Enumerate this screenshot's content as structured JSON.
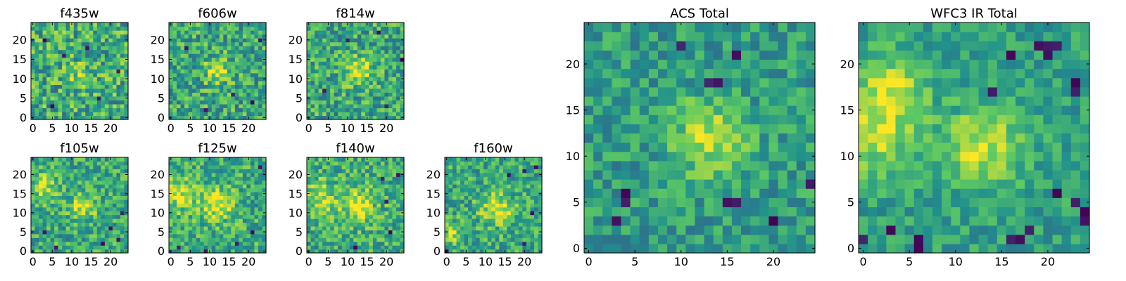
{
  "figure": {
    "colormap": "viridis",
    "colormap_stops": [
      "#440154",
      "#3b528b",
      "#21918c",
      "#5ec962",
      "#fde725"
    ]
  },
  "chart_data": [
    {
      "type": "heatmap",
      "title": "f435w",
      "shape": [
        25,
        25
      ],
      "xticks": [
        "0",
        "5",
        "10",
        "15",
        "20"
      ],
      "yticks": [
        "0",
        "5",
        "10",
        "15",
        "20"
      ],
      "xlim": [
        -0.5,
        24.5
      ],
      "ylim": [
        -0.5,
        24.5
      ],
      "origin": "lower",
      "seed": 11,
      "noise": 0.55,
      "blobs": [
        [
          12,
          11,
          2.5,
          0.15
        ]
      ],
      "base": 0.62,
      "darks": [
        [
          8,
          16
        ],
        [
          17,
          5
        ],
        [
          3,
          20
        ],
        [
          22,
          12
        ],
        [
          14,
          18
        ],
        [
          5,
          3
        ]
      ]
    },
    {
      "type": "heatmap",
      "title": "f606w",
      "shape": [
        25,
        25
      ],
      "xticks": [
        "0",
        "5",
        "10",
        "15",
        "20"
      ],
      "yticks": [
        "0",
        "5",
        "10",
        "15",
        "20"
      ],
      "xlim": [
        -0.5,
        24.5
      ],
      "ylim": [
        -0.5,
        24.5
      ],
      "origin": "lower",
      "seed": 23,
      "noise": 0.5,
      "blobs": [
        [
          12,
          12,
          2.2,
          0.35
        ]
      ],
      "base": 0.6,
      "darks": [
        [
          21,
          4
        ],
        [
          4,
          18
        ],
        [
          16,
          6
        ],
        [
          9,
          2
        ],
        [
          23,
          20
        ]
      ]
    },
    {
      "type": "heatmap",
      "title": "f814w",
      "shape": [
        25,
        25
      ],
      "xticks": [
        "0",
        "5",
        "10",
        "15",
        "20"
      ],
      "yticks": [
        "0",
        "5",
        "10",
        "15",
        "20"
      ],
      "xlim": [
        -0.5,
        24.5
      ],
      "ylim": [
        -0.5,
        24.5
      ],
      "origin": "lower",
      "seed": 37,
      "noise": 0.5,
      "blobs": [
        [
          13,
          12,
          2.5,
          0.35
        ]
      ],
      "base": 0.6,
      "darks": [
        [
          18,
          22
        ],
        [
          4,
          7
        ],
        [
          20,
          3
        ],
        [
          10,
          20
        ],
        [
          24,
          15
        ]
      ]
    },
    {
      "type": "heatmap",
      "title": "f105w",
      "shape": [
        25,
        25
      ],
      "xticks": [
        "0",
        "5",
        "10",
        "15",
        "20"
      ],
      "yticks": [
        "0",
        "5",
        "10",
        "15",
        "20"
      ],
      "xlim": [
        -0.5,
        24.5
      ],
      "ylim": [
        -0.5,
        24.5
      ],
      "origin": "lower",
      "seed": 41,
      "noise": 0.45,
      "blobs": [
        [
          13,
          12,
          2.5,
          0.3
        ],
        [
          3,
          17,
          2.5,
          0.3
        ]
      ],
      "base": 0.6,
      "darks": [
        [
          20,
          6
        ],
        [
          18,
          2
        ],
        [
          22,
          3
        ],
        [
          6,
          1
        ],
        [
          3,
          5
        ],
        [
          23,
          10
        ]
      ]
    },
    {
      "type": "heatmap",
      "title": "f125w",
      "shape": [
        25,
        25
      ],
      "xticks": [
        "0",
        "5",
        "10",
        "15",
        "20"
      ],
      "yticks": [
        "0",
        "5",
        "10",
        "15",
        "20"
      ],
      "xlim": [
        -0.5,
        24.5
      ],
      "ylim": [
        -0.5,
        24.5
      ],
      "origin": "lower",
      "seed": 53,
      "noise": 0.45,
      "blobs": [
        [
          12,
          12,
          3,
          0.35
        ],
        [
          2,
          15,
          3,
          0.3
        ]
      ],
      "base": 0.62,
      "darks": [
        [
          17,
          2
        ],
        [
          2,
          1
        ],
        [
          21,
          5
        ],
        [
          9,
          0
        ],
        [
          23,
          22
        ]
      ]
    },
    {
      "type": "heatmap",
      "title": "f140w",
      "shape": [
        25,
        25
      ],
      "xticks": [
        "0",
        "5",
        "10",
        "15",
        "20"
      ],
      "yticks": [
        "0",
        "5",
        "10",
        "15",
        "20"
      ],
      "xlim": [
        -0.5,
        24.5
      ],
      "ylim": [
        -0.5,
        24.5
      ],
      "origin": "lower",
      "seed": 67,
      "noise": 0.45,
      "blobs": [
        [
          13,
          12,
          3,
          0.35
        ],
        [
          3,
          14,
          3,
          0.3
        ]
      ],
      "base": 0.62,
      "darks": [
        [
          12,
          1
        ],
        [
          19,
          19
        ],
        [
          23,
          20
        ],
        [
          20,
          13
        ],
        [
          21,
          5
        ]
      ]
    },
    {
      "type": "heatmap",
      "title": "f160w",
      "shape": [
        25,
        25
      ],
      "xticks": [
        "0",
        "5",
        "10",
        "15",
        "20"
      ],
      "yticks": [
        "0",
        "5",
        "10",
        "15",
        "20"
      ],
      "xlim": [
        -0.5,
        24.5
      ],
      "ylim": [
        -0.5,
        24.5
      ],
      "origin": "lower",
      "seed": 79,
      "noise": 0.45,
      "blobs": [
        [
          13,
          11,
          3,
          0.35
        ],
        [
          1,
          5,
          2,
          0.35
        ]
      ],
      "base": 0.6,
      "darks": [
        [
          16,
          20
        ],
        [
          20,
          21
        ],
        [
          23,
          22
        ],
        [
          0,
          0
        ],
        [
          22,
          10
        ],
        [
          20,
          2
        ]
      ]
    },
    {
      "type": "heatmap",
      "title": "ACS Total",
      "shape": [
        25,
        25
      ],
      "xticks": [
        "0",
        "5",
        "10",
        "15",
        "20"
      ],
      "yticks": [
        "0",
        "5",
        "10",
        "15",
        "20"
      ],
      "xlim": [
        -0.5,
        24.5
      ],
      "ylim": [
        -0.5,
        24.5
      ],
      "origin": "lower",
      "seed": 97,
      "noise": 0.35,
      "blobs": [
        [
          13,
          12,
          2.8,
          0.35
        ]
      ],
      "base": 0.55,
      "darks": [
        [
          10,
          22
        ],
        [
          16,
          21
        ],
        [
          13,
          18
        ],
        [
          14,
          18
        ],
        [
          4,
          6
        ],
        [
          4,
          5
        ],
        [
          15,
          5
        ],
        [
          16,
          5
        ],
        [
          24,
          7
        ],
        [
          20,
          3
        ],
        [
          3,
          3
        ]
      ]
    },
    {
      "type": "heatmap",
      "title": "WFC3 IR Total",
      "shape": [
        25,
        25
      ],
      "xticks": [
        "0",
        "5",
        "10",
        "15",
        "20"
      ],
      "yticks": [
        "0",
        "5",
        "10",
        "15",
        "20"
      ],
      "xlim": [
        -0.5,
        24.5
      ],
      "ylim": [
        -0.5,
        24.5
      ],
      "origin": "lower",
      "seed": 113,
      "noise": 0.3,
      "blobs": [
        [
          13,
          11,
          3,
          0.35
        ],
        [
          1,
          13,
          3.5,
          0.35
        ],
        [
          3,
          18,
          2.5,
          0.25
        ]
      ],
      "base": 0.56,
      "darks": [
        [
          19,
          22
        ],
        [
          20,
          22
        ],
        [
          20,
          21
        ],
        [
          16,
          21
        ],
        [
          14,
          17
        ],
        [
          6,
          0
        ],
        [
          6,
          1
        ],
        [
          16,
          1
        ],
        [
          17,
          1
        ],
        [
          18,
          2
        ],
        [
          21,
          6
        ],
        [
          23,
          5
        ],
        [
          24,
          3
        ],
        [
          24,
          4
        ],
        [
          0,
          1
        ],
        [
          3,
          2
        ],
        [
          23,
          17
        ],
        [
          23,
          18
        ],
        [
          21,
          22
        ]
      ]
    }
  ]
}
